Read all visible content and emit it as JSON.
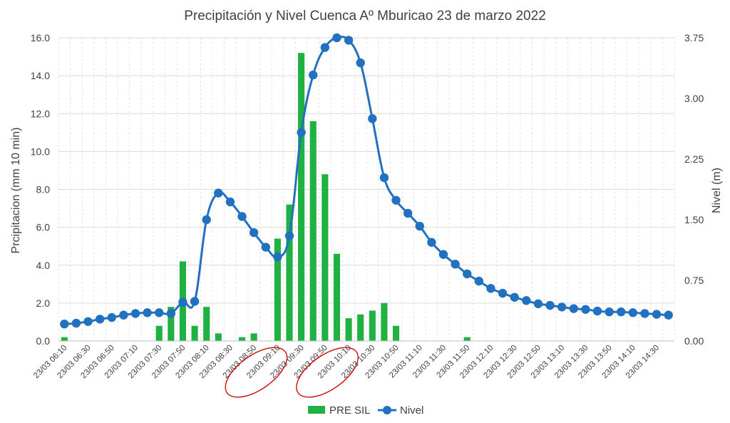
{
  "chart_data": {
    "type": "bar+line",
    "title": "Precipitación y Nivel Cuenca Aº Mburicao 23 de marzo 2022",
    "ylabel_left": "Prcipitacion (mm 10 min)",
    "ylabel_right": "Nivel (m)",
    "xlabel": "",
    "ylim_left": [
      0,
      16
    ],
    "ylim_right": [
      0,
      3.75
    ],
    "yticks_left": [
      "0.0",
      "2.0",
      "4.0",
      "6.0",
      "8.0",
      "10.0",
      "12.0",
      "14.0",
      "16.0"
    ],
    "yticks_right": [
      "0.00",
      "0.75",
      "1.50",
      "2.25",
      "3.00",
      "3.75"
    ],
    "grid": "horizontal",
    "legend_position": "bottom",
    "x_tick_labels": [
      "23/03 06:10",
      "23/03 06:30",
      "23/03 06:50",
      "23/03 07:10",
      "23/03 07:30",
      "23/03 07:50",
      "23/03 08:10",
      "23/03 08:30",
      "23/03 08:50",
      "23/03 09:10",
      "23/03 09:30",
      "23/03 09:50",
      "23/03 10:10",
      "23/03 10:30",
      "23/03 10:50",
      "23/03 11:10",
      "23/03 11:30",
      "23/03 11:50",
      "23/03 12:10",
      "23/03 12:30",
      "23/03 12:50",
      "23/03 13:10",
      "23/03 13:30",
      "23/03 13:50",
      "23/03 14:10",
      "23/03 14:30"
    ],
    "x": [
      "06:10",
      "06:20",
      "06:30",
      "06:40",
      "06:50",
      "07:00",
      "07:10",
      "07:20",
      "07:30",
      "07:40",
      "07:50",
      "08:00",
      "08:10",
      "08:20",
      "08:30",
      "08:40",
      "08:50",
      "09:00",
      "09:10",
      "09:20",
      "09:30",
      "09:40",
      "09:50",
      "10:00",
      "10:10",
      "10:20",
      "10:30",
      "10:40",
      "10:50",
      "11:00",
      "11:10",
      "11:20",
      "11:30",
      "11:40",
      "11:50",
      "12:00",
      "12:10",
      "12:20",
      "12:30",
      "12:40",
      "12:50",
      "13:00",
      "13:10",
      "13:20",
      "13:30",
      "13:40",
      "13:50",
      "14:00",
      "14:10",
      "14:20",
      "14:30",
      "14:40"
    ],
    "series": [
      {
        "name": "PRE SIL",
        "type": "bar",
        "axis": "left",
        "color": "#1fb142",
        "values": [
          0.2,
          0,
          0,
          0,
          0,
          0,
          0,
          0,
          0.8,
          1.8,
          4.2,
          0.8,
          1.8,
          0.4,
          0,
          0.2,
          0.4,
          0,
          5.4,
          7.2,
          15.2,
          11.6,
          8.8,
          4.6,
          1.2,
          1.4,
          1.6,
          2.0,
          0.8,
          0,
          0,
          0,
          0,
          0,
          0.2,
          0,
          0,
          0,
          0,
          0,
          0,
          0,
          0,
          0,
          0,
          0,
          0,
          0,
          0,
          0,
          0,
          0
        ]
      },
      {
        "name": "Nivel",
        "type": "line",
        "axis": "right",
        "color": "#2271c0",
        "values": [
          0.21,
          0.22,
          0.24,
          0.27,
          0.29,
          0.32,
          0.34,
          0.35,
          0.35,
          0.34,
          0.48,
          0.49,
          1.5,
          1.83,
          1.72,
          1.54,
          1.34,
          1.16,
          1.04,
          1.3,
          2.58,
          3.29,
          3.63,
          3.75,
          3.72,
          3.44,
          2.75,
          2.02,
          1.74,
          1.58,
          1.42,
          1.22,
          1.07,
          0.95,
          0.83,
          0.74,
          0.65,
          0.59,
          0.54,
          0.5,
          0.46,
          0.44,
          0.42,
          0.4,
          0.39,
          0.37,
          0.36,
          0.36,
          0.35,
          0.34,
          0.33,
          0.32
        ]
      }
    ],
    "annotations": [
      {
        "type": "ellipse",
        "color": "#cc0000",
        "around_tick": "23/03 09:10"
      },
      {
        "type": "ellipse",
        "color": "#cc0000",
        "around_tick": "23/03 10:10"
      }
    ]
  }
}
